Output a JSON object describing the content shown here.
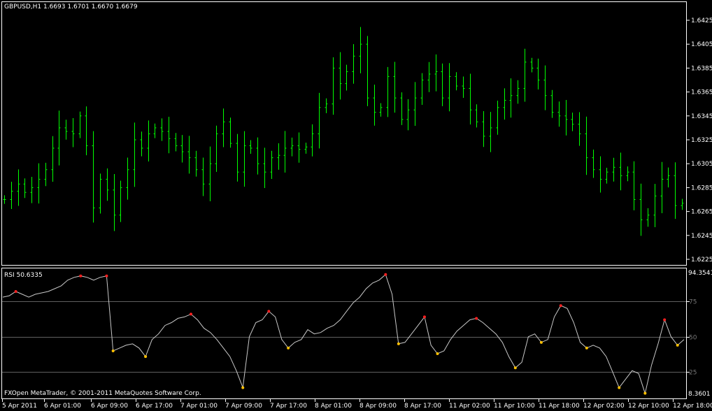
{
  "main_chart": {
    "title": "GBPUSD,H1  1.6693 1.6701 1.6670 1.6679",
    "y_ticks": [
      "1.6425",
      "1.6405",
      "1.6385",
      "1.6365",
      "1.6345",
      "1.6325",
      "1.6305",
      "1.6285",
      "1.6265",
      "1.6245",
      "1.6225"
    ]
  },
  "rsi_panel": {
    "title": "RSI 50.6335",
    "max_label": "94.3541",
    "min_label": "8.3601",
    "levels": [
      "75",
      "50",
      "25"
    ]
  },
  "copyright": "FXOpen MetaTrader, © 2001-2011 MetaQuotes Software Corp.",
  "x_ticks": [
    "5 Apr 2011",
    "6 Apr 01:00",
    "6 Apr 09:00",
    "6 Apr 17:00",
    "7 Apr 01:00",
    "7 Apr 09:00",
    "7 Apr 17:00",
    "8 Apr 01:00",
    "8 Apr 09:00",
    "8 Apr 17:00",
    "11 Apr 02:00",
    "11 Apr 10:00",
    "11 Apr 18:00",
    "12 Apr 02:00",
    "12 Apr 10:00",
    "12 Apr 18:00"
  ],
  "colors": {
    "bars": "#00ff00",
    "rsi_line": "#c8c8c8",
    "overbought_dot": "#ff2020",
    "oversold_dot": "#ffc000",
    "level_line": "#606060",
    "frame": "#ffffff"
  },
  "chart_data": [
    {
      "type": "bar",
      "title": "GBPUSD,H1",
      "x_labels": [
        "5 Apr 2011",
        "6 Apr 01:00",
        "6 Apr 09:00",
        "6 Apr 17:00",
        "7 Apr 01:00",
        "7 Apr 09:00",
        "7 Apr 17:00",
        "8 Apr 01:00",
        "8 Apr 09:00",
        "8 Apr 17:00",
        "11 Apr 02:00",
        "11 Apr 10:00",
        "11 Apr 18:00",
        "12 Apr 02:00",
        "12 Apr 10:00",
        "12 Apr 18:00"
      ],
      "ylim": [
        1.6225,
        1.6425
      ],
      "close_approx": [
        1.6275,
        1.6282,
        1.6288,
        1.6281,
        1.6285,
        1.6292,
        1.63,
        1.6318,
        1.6335,
        1.6332,
        1.633,
        1.6345,
        1.632,
        1.6268,
        1.6292,
        1.6283,
        1.6262,
        1.6285,
        1.63,
        1.6325,
        1.6318,
        1.633,
        1.6335,
        1.6332,
        1.6326,
        1.632,
        1.6315,
        1.631,
        1.63,
        1.6288,
        1.6305,
        1.633,
        1.634,
        1.6322,
        1.6298,
        1.632,
        1.6318,
        1.6305,
        1.6298,
        1.631,
        1.6312,
        1.6318,
        1.632,
        1.6317,
        1.6319,
        1.633,
        1.6352,
        1.6355,
        1.6385,
        1.6372,
        1.6382,
        1.6395,
        1.6405,
        1.636,
        1.6348,
        1.6352,
        1.6378,
        1.636,
        1.6342,
        1.635,
        1.636,
        1.6375,
        1.638,
        1.6382,
        1.636,
        1.6378,
        1.637,
        1.6368,
        1.635,
        1.634,
        1.6328,
        1.6335,
        1.6352,
        1.6358,
        1.6362,
        1.6368,
        1.639,
        1.6385,
        1.6375,
        1.6362,
        1.6348,
        1.6345,
        1.6342,
        1.6338,
        1.633,
        1.631,
        1.63,
        1.6292,
        1.6298,
        1.6302,
        1.6295,
        1.6298,
        1.6275,
        1.6258,
        1.6262,
        1.6278,
        1.6292,
        1.6295,
        1.627,
        1.6272
      ]
    },
    {
      "type": "line",
      "title": "RSI",
      "ylim": [
        8.3601,
        94.3541
      ],
      "levels": [
        75,
        50,
        25
      ],
      "values": [
        78,
        79,
        82,
        80,
        78,
        80,
        81,
        82,
        84,
        86,
        90,
        92,
        93,
        92,
        90,
        92,
        93,
        40,
        42,
        44,
        45,
        42,
        36,
        48,
        52,
        58,
        60,
        63,
        64,
        66,
        62,
        56,
        53,
        48,
        42,
        36,
        26,
        14,
        50,
        60,
        62,
        68,
        64,
        48,
        42,
        46,
        48,
        55,
        52,
        53,
        56,
        58,
        62,
        68,
        74,
        78,
        84,
        88,
        90,
        94,
        80,
        45,
        46,
        52,
        58,
        64,
        44,
        38,
        40,
        48,
        54,
        58,
        62,
        63,
        60,
        56,
        52,
        46,
        36,
        28,
        32,
        50,
        52,
        46,
        48,
        64,
        72,
        70,
        60,
        46,
        42,
        44,
        42,
        36,
        25,
        14,
        20,
        26,
        24,
        10,
        30,
        45,
        62,
        50,
        44,
        48
      ]
    }
  ]
}
